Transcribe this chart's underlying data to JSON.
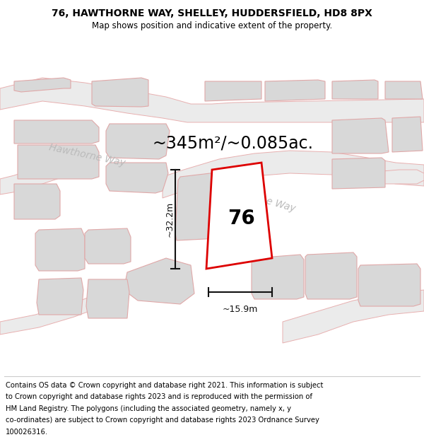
{
  "title": "76, HAWTHORNE WAY, SHELLEY, HUDDERSFIELD, HD8 8PX",
  "subtitle": "Map shows position and indicative extent of the property.",
  "area_label": "~345m²/~0.085ac.",
  "width_label": "~15.9m",
  "height_label": "~32.2m",
  "number_label": "76",
  "map_bg": "#ffffff",
  "road_fill": "#ebebeb",
  "building_fill": "#d8d8d8",
  "plot_stroke": "#dd0000",
  "road_stroke": "#e8b0b0",
  "building_stroke": "#e0a8a8",
  "dim_color": "#111111",
  "road_label_color": "#bbbbbb",
  "title_fontsize": 10,
  "subtitle_fontsize": 8.5,
  "footer_fontsize": 7.2,
  "area_fontsize": 17,
  "dim_fontsize": 9,
  "number_fontsize": 20,
  "road_label_fontsize": 10,
  "footer_lines": [
    "Contains OS data © Crown copyright and database right 2021. This information is subject",
    "to Crown copyright and database rights 2023 and is reproduced with the permission of",
    "HM Land Registry. The polygons (including the associated geometry, namely x, y",
    "co-ordinates) are subject to Crown copyright and database rights 2023 Ordnance Survey",
    "100026316."
  ]
}
